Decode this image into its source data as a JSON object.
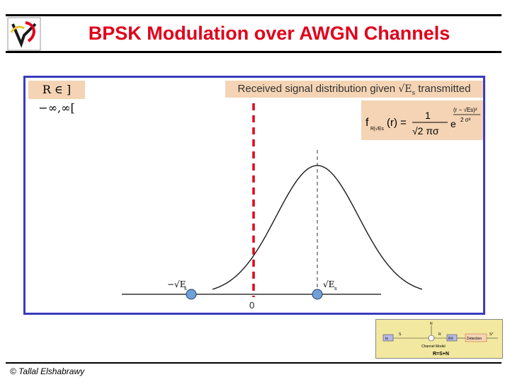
{
  "header": {
    "title": "BPSK Modulation over AWGN Channels"
  },
  "panel": {
    "range_label": "R ∈ ]−∞,∞[",
    "received_prefix": "Received signal distribution given",
    "received_symbol": "√E",
    "received_symbol_sub": "s",
    "received_suffix": "transmitted",
    "formula": {
      "lhs": "f",
      "lhs_sub": "R|√Es",
      "arg": "(r) =",
      "numerator": "1",
      "denominator": "√2 πσ",
      "exp_base": "e",
      "exp_num": "(r − √Es)²",
      "exp_den": "2 σ²"
    },
    "axis": {
      "neg_label": "−√E",
      "neg_label_sub": "s",
      "pos_label": "√E",
      "pos_label_sub": "s",
      "zero_label": "0"
    }
  },
  "inset": {
    "top_label": "N",
    "s_label": "S",
    "r_label": "R",
    "s_hat_label": "S*",
    "tx": "tx",
    "rx": "RX",
    "detection": "Detection",
    "channel_model": "Channel Model",
    "equation": "R=S+N"
  },
  "footer": {
    "copyright": "© Tallal Elshabrawy"
  },
  "colors": {
    "title": "#e0001b",
    "panel_border": "#3b3bbf",
    "highlight": "#f4d4b4",
    "threshold": "#e0001b",
    "marker": "#6fa0d8"
  }
}
